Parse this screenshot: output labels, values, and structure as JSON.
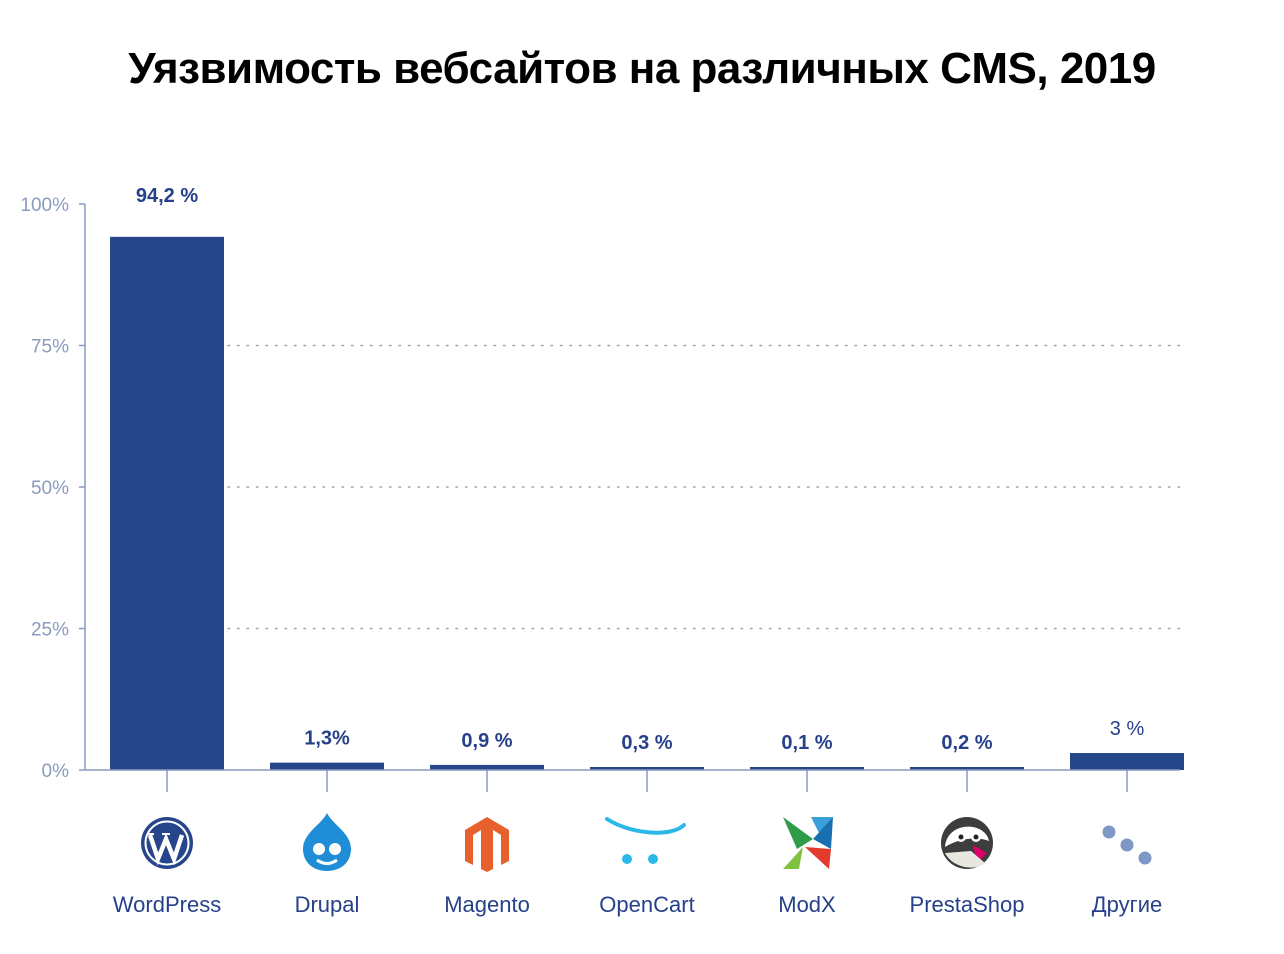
{
  "chart_data": {
    "type": "bar",
    "title": "Уязвимость вебсайтов на различных CMS, 2019",
    "xlabel": "",
    "ylabel": "",
    "ylim": [
      0,
      100
    ],
    "yticks": [
      0,
      25,
      50,
      75,
      100
    ],
    "ytick_labels": [
      "0%",
      "25%",
      "50%",
      "75%",
      "100%"
    ],
    "grid": "dotted horizontal",
    "categories": [
      "WordPress",
      "Drupal",
      "Magento",
      "OpenCart",
      "ModX",
      "PrestaShop",
      "Другие"
    ],
    "values": [
      94.2,
      1.3,
      0.9,
      0.3,
      0.1,
      0.2,
      3
    ],
    "value_labels": [
      "94,2 %",
      "1,3%",
      "0,9 %",
      "0,3 %",
      "0,1 %",
      "0,2 %",
      "3 %"
    ],
    "icons": [
      "wordpress-icon",
      "drupal-icon",
      "magento-icon",
      "opencart-icon",
      "modx-icon",
      "prestashop-icon",
      "others-icon"
    ]
  },
  "colors": {
    "bar": "#26468a",
    "axis": "#8a9bbf",
    "grid": "#9aa3b5",
    "label": "#26418a"
  }
}
